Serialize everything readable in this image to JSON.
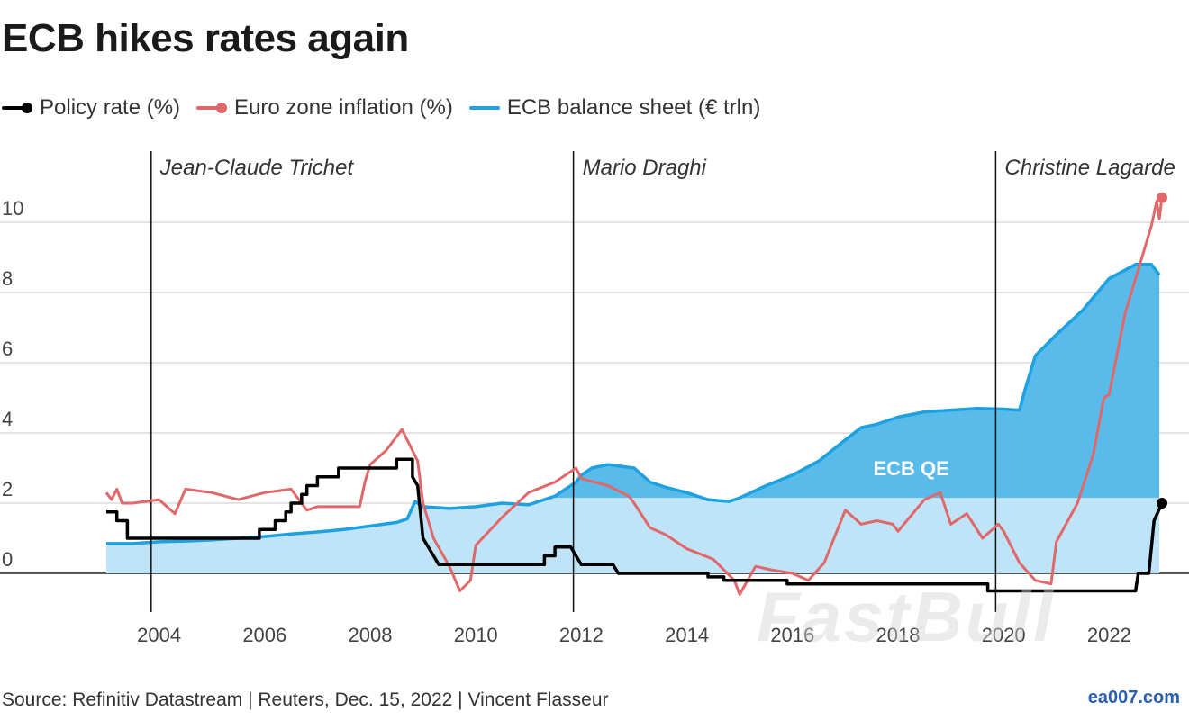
{
  "header": {
    "title": "ECB hikes rates again"
  },
  "legend": [
    {
      "label": "Policy rate (%)",
      "color": "#000000"
    },
    {
      "label": "Euro zone inflation (%)",
      "color": "#e0686a"
    },
    {
      "label": "ECB balance sheet (€ trln)",
      "color": "#1ea1e0"
    }
  ],
  "footer": {
    "source": "Source: Refinitiv Datastream | Reuters, Dec. 15, 2022 | Vincent Flasseur",
    "site": "ea007.com",
    "watermark": "FastBull"
  },
  "chart_data": {
    "type": "line",
    "title": "ECB hikes rates again",
    "xlabel": "",
    "ylabel": "",
    "xlim": [
      2003,
      2023.1
    ],
    "ylim": [
      -1.2,
      11
    ],
    "x_ticks": [
      2004,
      2006,
      2008,
      2010,
      2012,
      2014,
      2016,
      2018,
      2020,
      2022
    ],
    "y_ticks": [
      0,
      2,
      4,
      6,
      8,
      10
    ],
    "grid": true,
    "annotations": [
      {
        "text": "Jean-Claude Trichet",
        "x": 2003.85
      },
      {
        "text": "Mario Draghi",
        "x": 2011.85
      },
      {
        "text": "Christine Lagarde",
        "x": 2019.85
      }
    ],
    "area_label": {
      "text": "ECB QE",
      "x": 2018.25,
      "y": 3.0
    },
    "qe_threshold": 2.15,
    "series": [
      {
        "name": "ECB balance sheet (€ trln)",
        "type": "area",
        "color": "#1ea1e0",
        "points": [
          [
            2003.0,
            0.85
          ],
          [
            2003.5,
            0.85
          ],
          [
            2004.0,
            0.9
          ],
          [
            2004.5,
            0.92
          ],
          [
            2005.0,
            0.95
          ],
          [
            2005.5,
            1.0
          ],
          [
            2006.0,
            1.05
          ],
          [
            2006.5,
            1.12
          ],
          [
            2007.0,
            1.18
          ],
          [
            2007.5,
            1.25
          ],
          [
            2008.0,
            1.35
          ],
          [
            2008.5,
            1.45
          ],
          [
            2008.7,
            1.55
          ],
          [
            2008.85,
            2.05
          ],
          [
            2009.0,
            1.9
          ],
          [
            2009.5,
            1.85
          ],
          [
            2010.0,
            1.9
          ],
          [
            2010.5,
            2.0
          ],
          [
            2011.0,
            1.95
          ],
          [
            2011.5,
            2.2
          ],
          [
            2011.9,
            2.6
          ],
          [
            2012.0,
            2.8
          ],
          [
            2012.2,
            3.0
          ],
          [
            2012.5,
            3.1
          ],
          [
            2013.0,
            3.0
          ],
          [
            2013.3,
            2.6
          ],
          [
            2013.6,
            2.45
          ],
          [
            2014.0,
            2.3
          ],
          [
            2014.4,
            2.1
          ],
          [
            2014.8,
            2.05
          ],
          [
            2015.0,
            2.15
          ],
          [
            2015.5,
            2.5
          ],
          [
            2016.0,
            2.8
          ],
          [
            2016.5,
            3.2
          ],
          [
            2017.0,
            3.8
          ],
          [
            2017.3,
            4.15
          ],
          [
            2017.6,
            4.25
          ],
          [
            2018.0,
            4.45
          ],
          [
            2018.5,
            4.6
          ],
          [
            2019.0,
            4.65
          ],
          [
            2019.5,
            4.7
          ],
          [
            2020.0,
            4.68
          ],
          [
            2020.3,
            4.65
          ],
          [
            2020.4,
            5.2
          ],
          [
            2020.6,
            6.2
          ],
          [
            2021.0,
            6.8
          ],
          [
            2021.5,
            7.5
          ],
          [
            2022.0,
            8.4
          ],
          [
            2022.5,
            8.8
          ],
          [
            2022.8,
            8.8
          ],
          [
            2022.95,
            8.5
          ]
        ]
      },
      {
        "name": "Euro zone inflation (%)",
        "type": "line",
        "color": "#e0686a",
        "points": [
          [
            2003.0,
            2.3
          ],
          [
            2003.1,
            2.1
          ],
          [
            2003.2,
            2.4
          ],
          [
            2003.3,
            2.0
          ],
          [
            2003.5,
            2.0
          ],
          [
            2004.0,
            2.1
          ],
          [
            2004.3,
            1.7
          ],
          [
            2004.5,
            2.4
          ],
          [
            2005.0,
            2.3
          ],
          [
            2005.5,
            2.1
          ],
          [
            2006.0,
            2.3
          ],
          [
            2006.5,
            2.4
          ],
          [
            2006.8,
            1.8
          ],
          [
            2007.0,
            1.9
          ],
          [
            2007.5,
            1.9
          ],
          [
            2007.8,
            1.9
          ],
          [
            2007.9,
            2.6
          ],
          [
            2008.0,
            3.1
          ],
          [
            2008.3,
            3.5
          ],
          [
            2008.6,
            4.1
          ],
          [
            2008.9,
            3.2
          ],
          [
            2009.0,
            2.0
          ],
          [
            2009.2,
            1.0
          ],
          [
            2009.5,
            0.2
          ],
          [
            2009.7,
            -0.5
          ],
          [
            2009.9,
            -0.2
          ],
          [
            2010.0,
            0.8
          ],
          [
            2010.5,
            1.6
          ],
          [
            2011.0,
            2.3
          ],
          [
            2011.5,
            2.6
          ],
          [
            2011.9,
            3.0
          ],
          [
            2012.0,
            2.7
          ],
          [
            2012.5,
            2.5
          ],
          [
            2012.9,
            2.2
          ],
          [
            2013.0,
            2.0
          ],
          [
            2013.3,
            1.3
          ],
          [
            2013.6,
            1.1
          ],
          [
            2014.0,
            0.7
          ],
          [
            2014.5,
            0.4
          ],
          [
            2014.9,
            -0.2
          ],
          [
            2015.0,
            -0.6
          ],
          [
            2015.3,
            0.2
          ],
          [
            2015.6,
            0.1
          ],
          [
            2016.0,
            0.0
          ],
          [
            2016.3,
            -0.2
          ],
          [
            2016.6,
            0.3
          ],
          [
            2017.0,
            1.8
          ],
          [
            2017.3,
            1.4
          ],
          [
            2017.6,
            1.5
          ],
          [
            2017.9,
            1.4
          ],
          [
            2018.0,
            1.2
          ],
          [
            2018.5,
            2.1
          ],
          [
            2018.8,
            2.3
          ],
          [
            2019.0,
            1.4
          ],
          [
            2019.3,
            1.7
          ],
          [
            2019.6,
            1.0
          ],
          [
            2019.9,
            1.4
          ],
          [
            2020.0,
            1.2
          ],
          [
            2020.3,
            0.3
          ],
          [
            2020.6,
            -0.2
          ],
          [
            2020.9,
            -0.3
          ],
          [
            2021.0,
            0.9
          ],
          [
            2021.4,
            2.0
          ],
          [
            2021.7,
            3.4
          ],
          [
            2021.9,
            5.0
          ],
          [
            2022.0,
            5.1
          ],
          [
            2022.3,
            7.4
          ],
          [
            2022.6,
            8.9
          ],
          [
            2022.8,
            9.9
          ],
          [
            2022.9,
            10.6
          ],
          [
            2022.95,
            10.1
          ],
          [
            2023.0,
            10.7
          ]
        ]
      },
      {
        "name": "Policy rate (%)",
        "type": "step",
        "color": "#000000",
        "points": [
          [
            2003.0,
            1.75
          ],
          [
            2003.2,
            1.75
          ],
          [
            2003.2,
            1.5
          ],
          [
            2003.4,
            1.5
          ],
          [
            2003.4,
            1.0
          ],
          [
            2005.9,
            1.0
          ],
          [
            2005.9,
            1.25
          ],
          [
            2006.2,
            1.25
          ],
          [
            2006.2,
            1.5
          ],
          [
            2006.4,
            1.5
          ],
          [
            2006.4,
            1.75
          ],
          [
            2006.5,
            1.75
          ],
          [
            2006.5,
            2.0
          ],
          [
            2006.7,
            2.0
          ],
          [
            2006.7,
            2.25
          ],
          [
            2006.8,
            2.25
          ],
          [
            2006.8,
            2.5
          ],
          [
            2007.0,
            2.5
          ],
          [
            2007.0,
            2.75
          ],
          [
            2007.4,
            2.75
          ],
          [
            2007.4,
            3.0
          ],
          [
            2008.5,
            3.0
          ],
          [
            2008.5,
            3.25
          ],
          [
            2008.8,
            3.25
          ],
          [
            2008.8,
            2.75
          ],
          [
            2008.9,
            2.5
          ],
          [
            2009.0,
            1.0
          ],
          [
            2009.2,
            0.5
          ],
          [
            2009.3,
            0.25
          ],
          [
            2011.3,
            0.25
          ],
          [
            2011.3,
            0.5
          ],
          [
            2011.5,
            0.5
          ],
          [
            2011.5,
            0.75
          ],
          [
            2011.8,
            0.75
          ],
          [
            2011.9,
            0.5
          ],
          [
            2012.0,
            0.25
          ],
          [
            2012.6,
            0.25
          ],
          [
            2012.7,
            0.0
          ],
          [
            2014.4,
            0.0
          ],
          [
            2014.4,
            -0.1
          ],
          [
            2014.7,
            -0.1
          ],
          [
            2014.7,
            -0.2
          ],
          [
            2015.9,
            -0.2
          ],
          [
            2015.9,
            -0.3
          ],
          [
            2019.7,
            -0.3
          ],
          [
            2019.7,
            -0.5
          ],
          [
            2022.5,
            -0.5
          ],
          [
            2022.55,
            0.0
          ],
          [
            2022.75,
            0.0
          ],
          [
            2022.8,
            0.75
          ],
          [
            2022.85,
            1.5
          ],
          [
            2023.0,
            2.0
          ]
        ]
      }
    ]
  }
}
